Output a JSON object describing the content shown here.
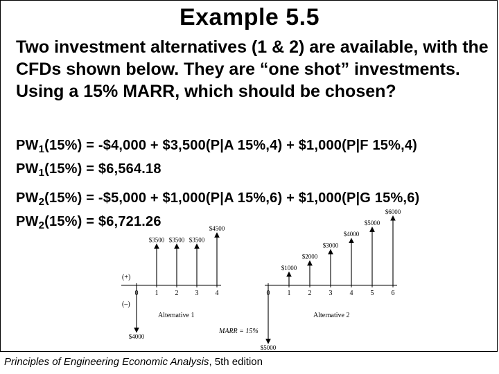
{
  "slide": {
    "title": "Example 5.5",
    "question": "Two investment alternatives (1 & 2) are available, with the CFDs shown below. They are “one shot” investments. Using a 15% MARR, which should be chosen?",
    "footer": {
      "book_title": "Principles of Engineering Economic Analysis",
      "edition": ", 5th edition"
    }
  },
  "equations": {
    "alt1_line1": {
      "lhs_pre": "PW",
      "lhs_sub": "1",
      "lhs_post": "(15%) = -$4,000 + $3,500(P|A 15%,4) + $1,000(P|F 15%,4)"
    },
    "alt1_line2": {
      "lhs_pre": "PW",
      "lhs_sub": "1",
      "lhs_post": "(15%) = $6,564.18"
    },
    "alt2_line1": {
      "lhs_pre": "PW",
      "lhs_sub": "2",
      "lhs_post": "(15%) = -$5,000 + $1,000(P|A 15%,6) + $1,000(P|G 15%,6)"
    },
    "alt2_line2": {
      "lhs_pre": "PW",
      "lhs_sub": "2",
      "lhs_post": "(15%) = $6,721.26"
    }
  },
  "cfd": {
    "plus_label": "(+)",
    "minus_label": "(–)",
    "marr_label": "MARR = 15%",
    "alt1": {
      "caption": "Alternative 1",
      "periods": [
        "0",
        "1",
        "2",
        "3",
        "4"
      ],
      "cash_flows": [
        {
          "period": 0,
          "amount": -4000,
          "label": "$4000"
        },
        {
          "period": 1,
          "amount": 3500,
          "label": "$3500"
        },
        {
          "period": 2,
          "amount": 3500,
          "label": "$3500"
        },
        {
          "period": 3,
          "amount": 3500,
          "label": "$3500"
        },
        {
          "period": 4,
          "amount": 4500,
          "label": "$4500"
        }
      ]
    },
    "alt2": {
      "caption": "Alternative 2",
      "periods": [
        "0",
        "1",
        "2",
        "3",
        "4",
        "5",
        "6"
      ],
      "cash_flows": [
        {
          "period": 0,
          "amount": -5000,
          "label": "$5000"
        },
        {
          "period": 1,
          "amount": 1000,
          "label": "$1000"
        },
        {
          "period": 2,
          "amount": 2000,
          "label": "$2000"
        },
        {
          "period": 3,
          "amount": 3000,
          "label": "$3000"
        },
        {
          "period": 4,
          "amount": 4000,
          "label": "$4000"
        },
        {
          "period": 5,
          "amount": 5000,
          "label": "$5000"
        },
        {
          "period": 6,
          "amount": 6000,
          "label": "$6000"
        }
      ]
    }
  }
}
